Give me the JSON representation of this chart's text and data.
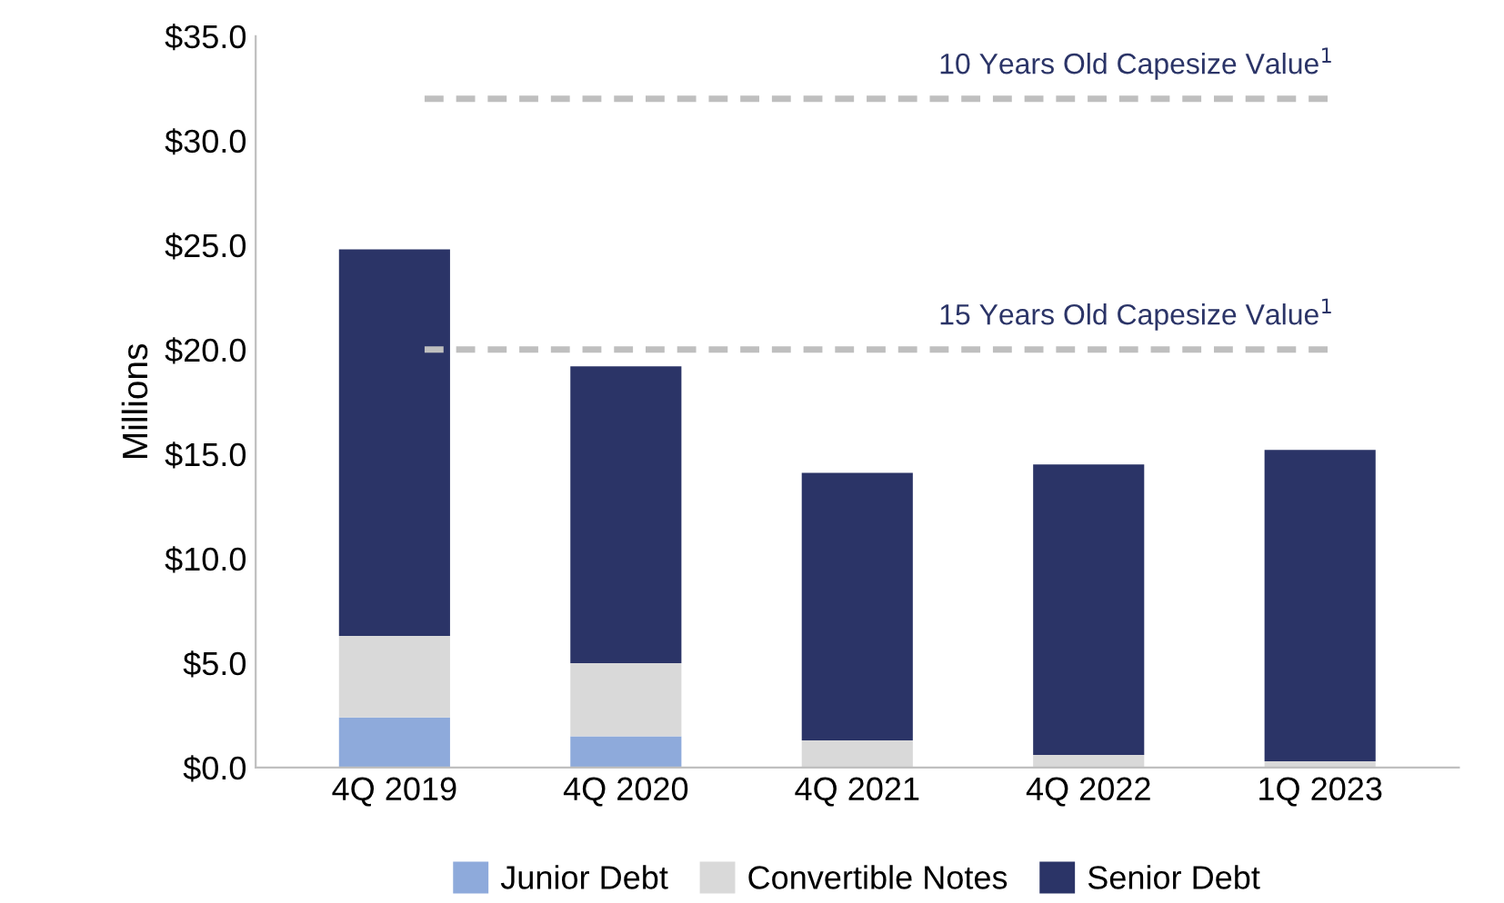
{
  "chart_data": {
    "type": "bar",
    "stacked": true,
    "ylabel": "Millions",
    "categories": [
      "4Q 2019",
      "4Q 2020",
      "4Q 2021",
      "4Q 2022",
      "1Q 2023"
    ],
    "series": [
      {
        "name": "Junior Debt",
        "color": "#8eaadb",
        "values": [
          2.4,
          1.5,
          0,
          0,
          0
        ]
      },
      {
        "name": "Convertible Notes",
        "color": "#d9d9d9",
        "values": [
          3.9,
          3.5,
          1.3,
          0.6,
          0.3
        ]
      },
      {
        "name": "Senior Debt",
        "color": "#2b3467",
        "values": [
          18.5,
          14.2,
          12.8,
          13.9,
          14.9
        ]
      }
    ],
    "ylim": [
      0,
      35
    ],
    "yticks": [
      {
        "value": 0,
        "label": "$0.0"
      },
      {
        "value": 5,
        "label": "$5.0"
      },
      {
        "value": 10,
        "label": "$10.0"
      },
      {
        "value": 15,
        "label": "$15.0"
      },
      {
        "value": 20,
        "label": "$20.0"
      },
      {
        "value": 25,
        "label": "$25.0"
      },
      {
        "value": 30,
        "label": "$30.0"
      },
      {
        "value": 35,
        "label": "$35.0"
      }
    ],
    "ref_lines": [
      {
        "axis": "y",
        "value": 32,
        "label": "10 Years Old Capesize Value$^{1}$",
        "color": "#bfbfbf",
        "line_style": "dashed"
      },
      {
        "axis": "y",
        "value": 20,
        "label": "15 Years Old Capesize Value$^{1}$",
        "color": "#bfbfbf",
        "line_style": "dashed"
      }
    ],
    "legend": "bottom",
    "grid": false
  }
}
